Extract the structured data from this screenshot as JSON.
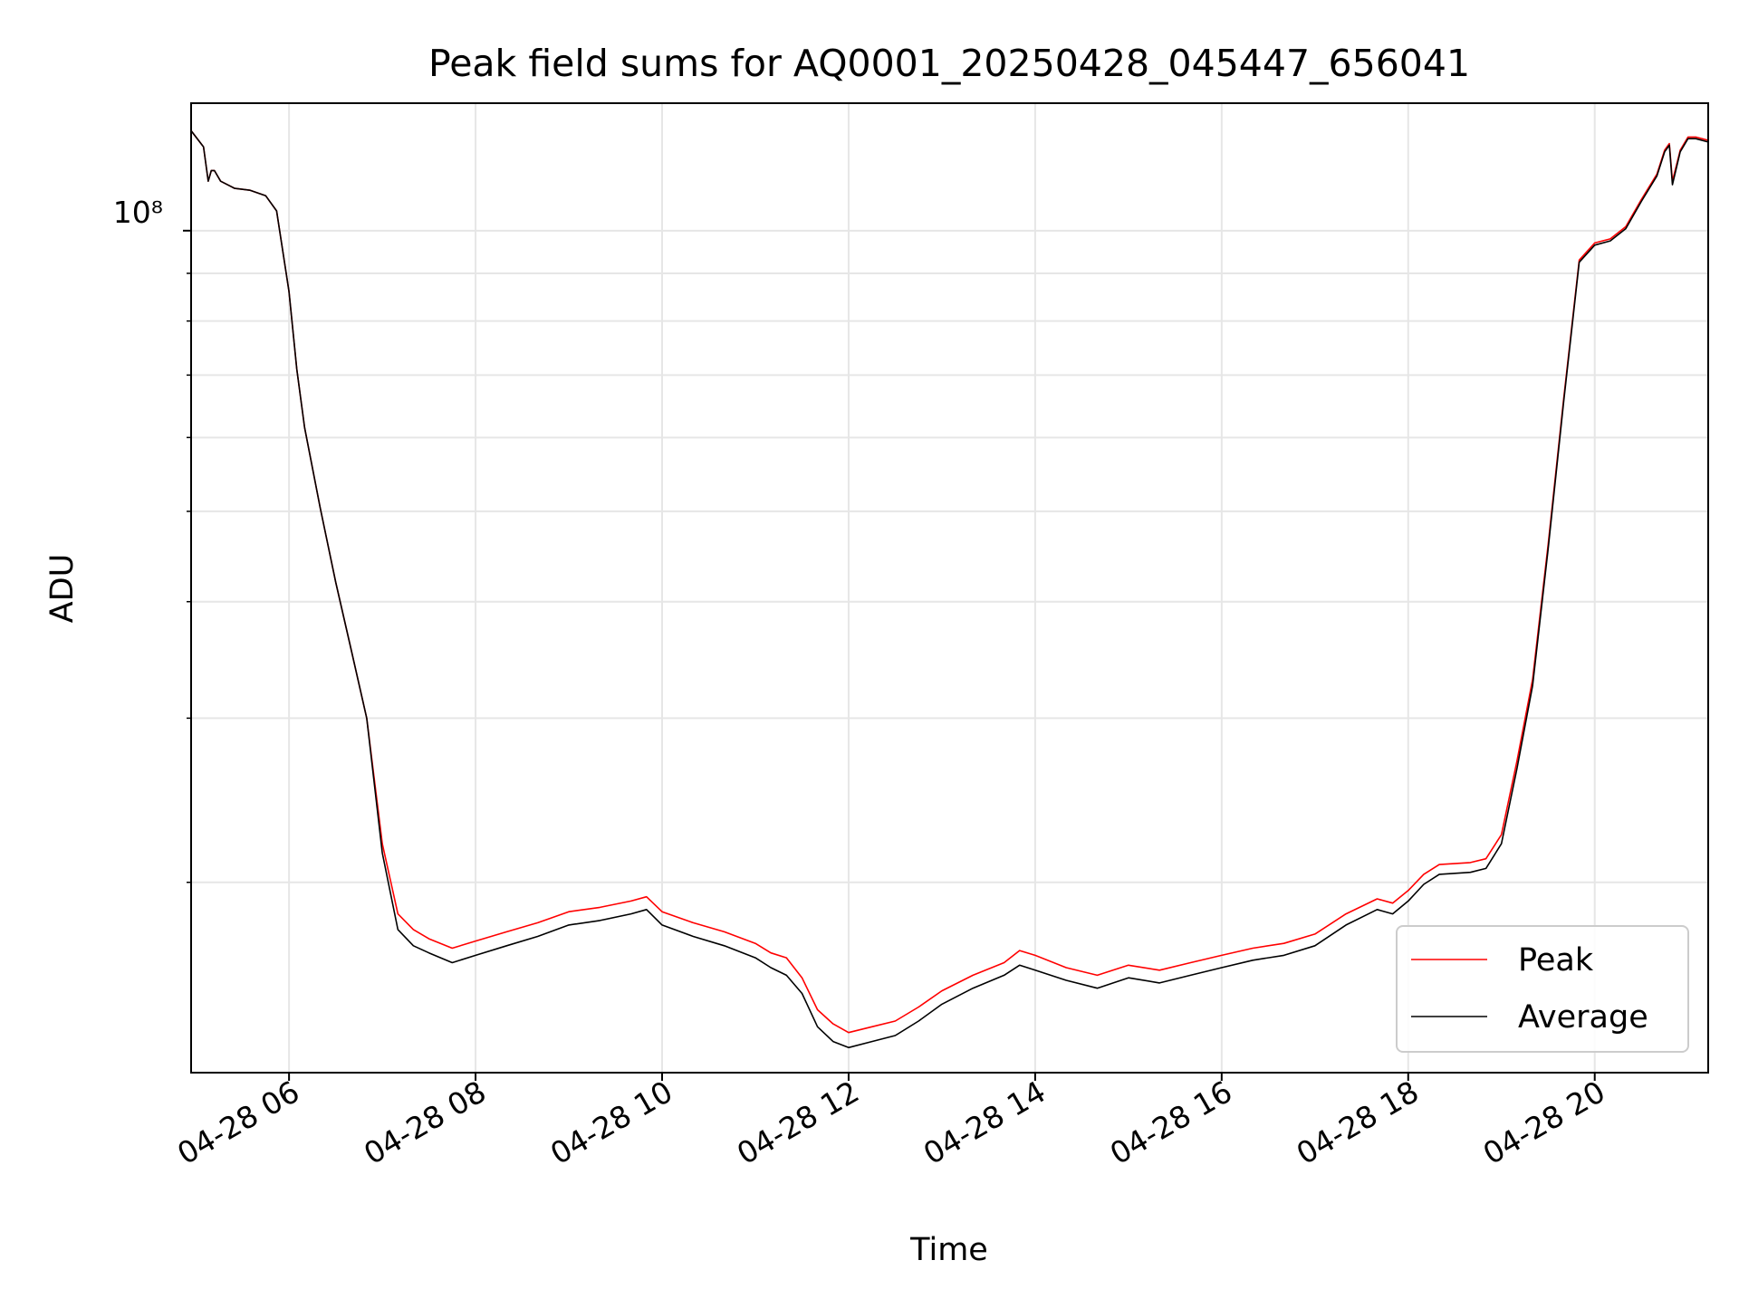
{
  "chart_data": {
    "type": "line",
    "title": "Peak field sums for AQ0001_20250428_045447_656041",
    "xlabel": "Time",
    "ylabel": "ADU",
    "y_scale": "log",
    "y_tick_label": "10⁸",
    "xlim": [
      "2025-04-28 04:57",
      "2025-04-28 21:13"
    ],
    "ylim": [
      12500000,
      137000000
    ],
    "x_ticks": [
      "04-28 06",
      "04-28 08",
      "04-28 10",
      "04-28 12",
      "04-28 14",
      "04-28 16",
      "04-28 18",
      "04-28 20"
    ],
    "x_tick_times": [
      "2025-04-28 06:00",
      "2025-04-28 08:00",
      "2025-04-28 10:00",
      "2025-04-28 12:00",
      "2025-04-28 14:00",
      "2025-04-28 16:00",
      "2025-04-28 18:00",
      "2025-04-28 20:00"
    ],
    "grid": true,
    "legend_position": "lower-right",
    "series": [
      {
        "name": "Peak",
        "color": "#ff0000",
        "x": [
          "2025-04-28 04:57",
          "2025-04-28 05:05",
          "2025-04-28 05:08",
          "2025-04-28 05:10",
          "2025-04-28 05:12",
          "2025-04-28 05:16",
          "2025-04-28 05:25",
          "2025-04-28 05:35",
          "2025-04-28 05:45",
          "2025-04-28 05:52",
          "2025-04-28 06:00",
          "2025-04-28 06:05",
          "2025-04-28 06:10",
          "2025-04-28 06:20",
          "2025-04-28 06:30",
          "2025-04-28 06:40",
          "2025-04-28 06:50",
          "2025-04-28 07:00",
          "2025-04-28 07:10",
          "2025-04-28 07:20",
          "2025-04-28 07:30",
          "2025-04-28 07:45",
          "2025-04-28 08:00",
          "2025-04-28 08:20",
          "2025-04-28 08:40",
          "2025-04-28 09:00",
          "2025-04-28 09:20",
          "2025-04-28 09:40",
          "2025-04-28 09:50",
          "2025-04-28 10:00",
          "2025-04-28 10:20",
          "2025-04-28 10:40",
          "2025-04-28 11:00",
          "2025-04-28 11:10",
          "2025-04-28 11:20",
          "2025-04-28 11:30",
          "2025-04-28 11:40",
          "2025-04-28 11:50",
          "2025-04-28 12:00",
          "2025-04-28 12:15",
          "2025-04-28 12:30",
          "2025-04-28 12:45",
          "2025-04-28 13:00",
          "2025-04-28 13:20",
          "2025-04-28 13:40",
          "2025-04-28 13:50",
          "2025-04-28 14:00",
          "2025-04-28 14:20",
          "2025-04-28 14:40",
          "2025-04-28 15:00",
          "2025-04-28 15:20",
          "2025-04-28 15:40",
          "2025-04-28 16:00",
          "2025-04-28 16:20",
          "2025-04-28 16:40",
          "2025-04-28 17:00",
          "2025-04-28 17:20",
          "2025-04-28 17:40",
          "2025-04-28 17:50",
          "2025-04-28 18:00",
          "2025-04-28 18:10",
          "2025-04-28 18:20",
          "2025-04-28 18:40",
          "2025-04-28 18:50",
          "2025-04-28 19:00",
          "2025-04-28 19:10",
          "2025-04-28 19:20",
          "2025-04-28 19:30",
          "2025-04-28 19:40",
          "2025-04-28 19:50",
          "2025-04-28 20:00",
          "2025-04-28 20:10",
          "2025-04-28 20:20",
          "2025-04-28 20:30",
          "2025-04-28 20:40",
          "2025-04-28 20:45",
          "2025-04-28 20:48",
          "2025-04-28 20:50",
          "2025-04-28 20:55",
          "2025-04-28 21:00",
          "2025-04-28 21:05",
          "2025-04-28 21:13"
        ],
        "values": [
          128000000,
          123000000,
          113000000,
          116000000,
          116000000,
          113000000,
          111000000,
          110500000,
          109000000,
          105000000,
          86000000,
          71000000,
          61500000,
          50500000,
          42000000,
          35500000,
          30000000,
          22000000,
          18500000,
          17800000,
          17400000,
          17000000,
          17300000,
          17700000,
          18100000,
          18600000,
          18800000,
          19100000,
          19300000,
          18600000,
          18100000,
          17700000,
          17200000,
          16800000,
          16600000,
          15800000,
          14600000,
          14100000,
          13800000,
          14000000,
          14200000,
          14700000,
          15300000,
          15900000,
          16400000,
          16900000,
          16700000,
          16200000,
          15900000,
          16300000,
          16100000,
          16400000,
          16700000,
          17000000,
          17200000,
          17600000,
          18500000,
          19200000,
          19000000,
          19600000,
          20400000,
          20900000,
          21000000,
          21200000,
          22500000,
          27000000,
          33000000,
          46000000,
          66000000,
          93000000,
          97000000,
          98000000,
          101000000,
          108000000,
          115000000,
          122000000,
          124000000,
          113000000,
          122000000,
          126000000,
          126000000,
          125000000
        ]
      },
      {
        "name": "Average",
        "color": "#000000",
        "x": [
          "2025-04-28 04:57",
          "2025-04-28 05:05",
          "2025-04-28 05:08",
          "2025-04-28 05:10",
          "2025-04-28 05:12",
          "2025-04-28 05:16",
          "2025-04-28 05:25",
          "2025-04-28 05:35",
          "2025-04-28 05:45",
          "2025-04-28 05:52",
          "2025-04-28 06:00",
          "2025-04-28 06:05",
          "2025-04-28 06:10",
          "2025-04-28 06:20",
          "2025-04-28 06:30",
          "2025-04-28 06:40",
          "2025-04-28 06:50",
          "2025-04-28 07:00",
          "2025-04-28 07:10",
          "2025-04-28 07:20",
          "2025-04-28 07:30",
          "2025-04-28 07:45",
          "2025-04-28 08:00",
          "2025-04-28 08:20",
          "2025-04-28 08:40",
          "2025-04-28 09:00",
          "2025-04-28 09:20",
          "2025-04-28 09:40",
          "2025-04-28 09:50",
          "2025-04-28 10:00",
          "2025-04-28 10:20",
          "2025-04-28 10:40",
          "2025-04-28 11:00",
          "2025-04-28 11:10",
          "2025-04-28 11:20",
          "2025-04-28 11:30",
          "2025-04-28 11:40",
          "2025-04-28 11:50",
          "2025-04-28 12:00",
          "2025-04-28 12:15",
          "2025-04-28 12:30",
          "2025-04-28 12:45",
          "2025-04-28 13:00",
          "2025-04-28 13:20",
          "2025-04-28 13:40",
          "2025-04-28 13:50",
          "2025-04-28 14:00",
          "2025-04-28 14:20",
          "2025-04-28 14:40",
          "2025-04-28 15:00",
          "2025-04-28 15:20",
          "2025-04-28 15:40",
          "2025-04-28 16:00",
          "2025-04-28 16:20",
          "2025-04-28 16:40",
          "2025-04-28 17:00",
          "2025-04-28 17:20",
          "2025-04-28 17:40",
          "2025-04-28 17:50",
          "2025-04-28 18:00",
          "2025-04-28 18:10",
          "2025-04-28 18:20",
          "2025-04-28 18:40",
          "2025-04-28 18:50",
          "2025-04-28 19:00",
          "2025-04-28 19:10",
          "2025-04-28 19:20",
          "2025-04-28 19:30",
          "2025-04-28 19:40",
          "2025-04-28 19:50",
          "2025-04-28 20:00",
          "2025-04-28 20:10",
          "2025-04-28 20:20",
          "2025-04-28 20:30",
          "2025-04-28 20:40",
          "2025-04-28 20:45",
          "2025-04-28 20:48",
          "2025-04-28 20:50",
          "2025-04-28 20:55",
          "2025-04-28 21:00",
          "2025-04-28 21:05",
          "2025-04-28 21:13"
        ],
        "values": [
          128000000,
          123000000,
          113000000,
          116000000,
          116000000,
          113000000,
          111000000,
          110500000,
          109000000,
          105000000,
          86000000,
          71000000,
          61500000,
          50500000,
          42000000,
          35500000,
          30000000,
          21500000,
          17800000,
          17100000,
          16800000,
          16400000,
          16700000,
          17100000,
          17500000,
          18000000,
          18200000,
          18500000,
          18700000,
          18000000,
          17500000,
          17100000,
          16600000,
          16200000,
          15900000,
          15200000,
          14000000,
          13500000,
          13300000,
          13500000,
          13700000,
          14200000,
          14800000,
          15400000,
          15900000,
          16300000,
          16100000,
          15700000,
          15400000,
          15800000,
          15600000,
          15900000,
          16200000,
          16500000,
          16700000,
          17100000,
          18000000,
          18700000,
          18500000,
          19100000,
          19900000,
          20400000,
          20500000,
          20700000,
          22000000,
          26500000,
          32500000,
          45500000,
          65500000,
          92500000,
          96500000,
          97500000,
          100500000,
          107500000,
          114500000,
          121500000,
          123500000,
          112000000,
          121500000,
          125500000,
          125500000,
          124500000
        ]
      }
    ]
  }
}
